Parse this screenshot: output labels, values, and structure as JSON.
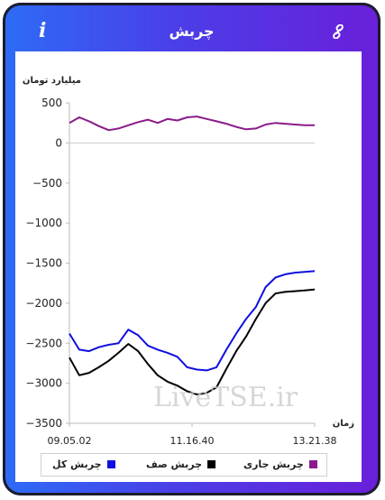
{
  "header": {
    "title": "چربش",
    "info_icon": "info-icon",
    "link_icon": "link-icon"
  },
  "watermark": "LiveTSE.ir",
  "chart_data": {
    "type": "line",
    "ylabel": "میلیارد تومان",
    "xlabel": "زمان",
    "ylim": [
      -3500,
      500
    ],
    "yticks": [
      500,
      0,
      -500,
      -1000,
      -1500,
      -2000,
      -2500,
      -3000,
      -3500
    ],
    "xticks": [
      "09.05.02",
      "11.16.40",
      "13.21.38"
    ],
    "grid": false,
    "legend_position": "bottom",
    "x": [
      "09.05",
      "09.15",
      "09.25",
      "09.35",
      "09.45",
      "09.55",
      "10.05",
      "10.15",
      "10.25",
      "10.35",
      "10.45",
      "10.55",
      "11.05",
      "11.16",
      "11.25",
      "11.35",
      "11.45",
      "11.55",
      "12.05",
      "12.15",
      "12.25",
      "12.35",
      "12.45",
      "12.55",
      "13.05",
      "13.21"
    ],
    "series": [
      {
        "name": "چربش کل",
        "color": "#1010e0",
        "values": [
          -2380,
          -2580,
          -2600,
          -2550,
          -2520,
          -2500,
          -2330,
          -2400,
          -2530,
          -2580,
          -2620,
          -2670,
          -2800,
          -2830,
          -2840,
          -2800,
          -2580,
          -2380,
          -2200,
          -2050,
          -1800,
          -1680,
          -1640,
          -1620,
          -1610,
          -1600
        ]
      },
      {
        "name": "چربش صف",
        "color": "#000000",
        "values": [
          -2680,
          -2900,
          -2870,
          -2800,
          -2720,
          -2620,
          -2510,
          -2600,
          -2760,
          -2900,
          -2980,
          -3030,
          -3100,
          -3140,
          -3120,
          -3050,
          -2820,
          -2600,
          -2420,
          -2200,
          -2000,
          -1880,
          -1860,
          -1850,
          -1840,
          -1830
        ]
      },
      {
        "name": "چربش جاری",
        "color": "#8b1a8b",
        "values": [
          250,
          320,
          270,
          210,
          160,
          180,
          220,
          260,
          290,
          250,
          300,
          280,
          320,
          330,
          300,
          270,
          240,
          200,
          170,
          180,
          230,
          250,
          240,
          230,
          220,
          220
        ]
      }
    ]
  },
  "legend": {
    "items": [
      {
        "label": "چربش جاری",
        "color": "#8b1a8b"
      },
      {
        "label": "چربش صف",
        "color": "#000000"
      },
      {
        "label": "چربش کل",
        "color": "#1010e0"
      }
    ]
  }
}
